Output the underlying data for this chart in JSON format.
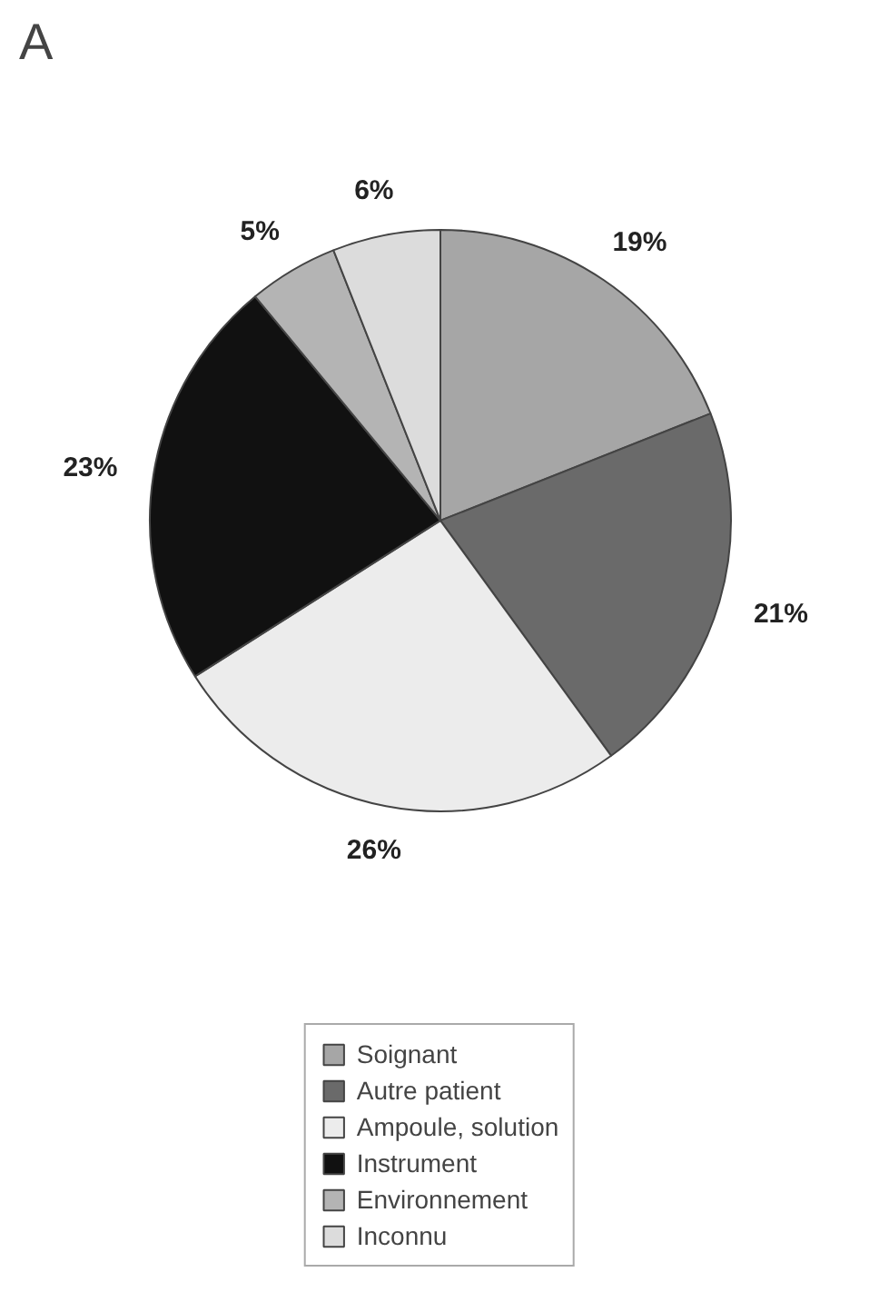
{
  "chart_data": {
    "type": "pie",
    "title": "A",
    "categories": [
      "Soignant",
      "Autre patient",
      "Ampoule, solution",
      "Instrument",
      "Environnement",
      "Inconnu"
    ],
    "values": [
      19,
      21,
      26,
      23,
      5,
      6
    ],
    "colors": [
      "#a6a6a6",
      "#6a6a6a",
      "#ececec",
      "#111111",
      "#b4b4b4",
      "#dcdcdc"
    ],
    "value_labels": [
      "19%",
      "21%",
      "26%",
      "23%",
      "5%",
      "6%"
    ],
    "legend": "bottom"
  }
}
